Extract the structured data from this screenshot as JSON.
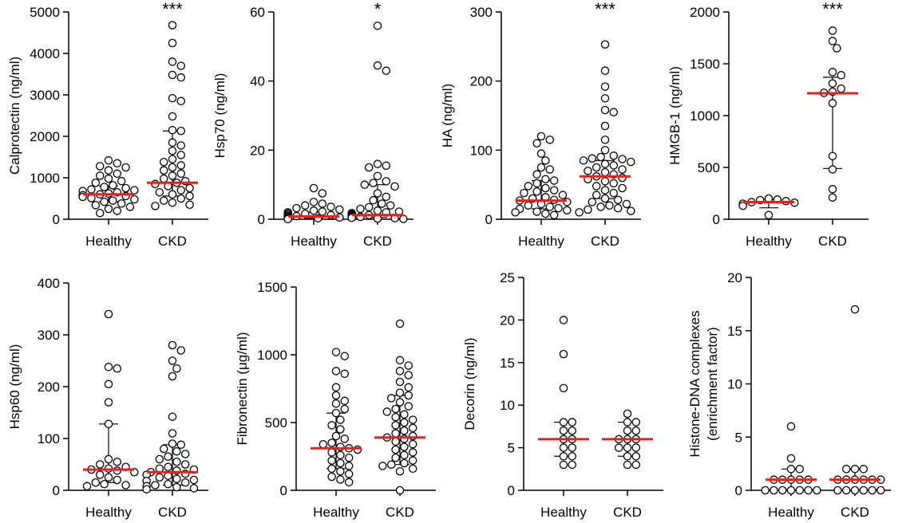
{
  "colors": {
    "median": "#e8201c",
    "dot_stroke": "#000000",
    "dot_fill": "#ffffff",
    "axis": "#000000"
  },
  "chart_data": [
    {
      "type": "scatter",
      "id": "calprotectin",
      "ylabel": "Calprotectin (ng/ml)",
      "categories": [
        "Healthy",
        "CKD"
      ],
      "ylim": [
        0,
        5000
      ],
      "yticks": [
        "0",
        "1000",
        "2000",
        "3000",
        "4000",
        "5000"
      ],
      "significance": "***",
      "series": [
        {
          "name": "Healthy",
          "median": 600,
          "iqr": [
            420,
            800
          ],
          "values": [
            1420,
            1350,
            1280,
            1250,
            1180,
            1100,
            1050,
            980,
            920,
            880,
            820,
            780,
            750,
            720,
            700,
            680,
            650,
            620,
            600,
            580,
            560,
            540,
            510,
            480,
            450,
            420,
            380,
            340,
            300,
            250,
            200,
            150
          ]
        },
        {
          "name": "CKD",
          "median": 880,
          "iqr": [
            560,
            2130
          ],
          "values": [
            4680,
            4250,
            3800,
            3700,
            3480,
            3420,
            2920,
            2850,
            2480,
            2150,
            2130,
            1850,
            1780,
            1650,
            1550,
            1450,
            1380,
            1300,
            1250,
            1180,
            1100,
            1050,
            980,
            920,
            880,
            850,
            800,
            750,
            700,
            650,
            600,
            560,
            500,
            450,
            400,
            350,
            320
          ]
        }
      ]
    },
    {
      "type": "scatter",
      "id": "hsp70",
      "ylabel": "Hsp70 (ng/ml)",
      "categories": [
        "Healthy",
        "CKD"
      ],
      "ylim": [
        0,
        60
      ],
      "yticks": [
        "0",
        "20",
        "40",
        "60"
      ],
      "significance": "*",
      "series": [
        {
          "name": "Healthy",
          "median": 0.8,
          "iqr": [
            0.3,
            2.0
          ],
          "values": [
            9.0,
            7.5,
            5.0,
            4.5,
            4.0,
            3.6,
            3.2,
            2.8,
            2.5,
            2.2,
            2.0,
            1.8,
            1.6,
            1.4,
            1.2,
            1.0,
            0.9,
            0.8,
            0.7,
            0.6,
            0.5,
            0.4,
            0.3,
            0.3,
            0.2,
            0.2,
            0.1,
            0.1,
            0.1,
            0.05
          ]
        },
        {
          "name": "CKD",
          "median": 1.2,
          "iqr": [
            0.5,
            10.0
          ],
          "values": [
            56.0,
            44.5,
            43.0,
            16.0,
            15.5,
            15.0,
            12.5,
            11.0,
            10.5,
            10.0,
            9.5,
            7.5,
            6.5,
            5.5,
            4.5,
            4.0,
            3.5,
            3.0,
            2.5,
            2.2,
            2.0,
            1.8,
            1.5,
            1.3,
            1.2,
            1.1,
            1.0,
            0.9,
            0.8,
            0.7,
            0.6,
            0.5,
            0.4,
            0.3,
            0.2,
            0.1
          ]
        }
      ]
    },
    {
      "type": "scatter",
      "id": "ha",
      "ylabel": "HA (ng/ml)",
      "categories": [
        "Healthy",
        "CKD"
      ],
      "ylim": [
        0,
        300
      ],
      "yticks": [
        "0",
        "100",
        "200",
        "300"
      ],
      "significance": "***",
      "series": [
        {
          "name": "Healthy",
          "median": 27,
          "iqr": [
            15,
            56
          ],
          "values": [
            120,
            115,
            110,
            95,
            85,
            75,
            72,
            65,
            58,
            56,
            52,
            48,
            45,
            42,
            40,
            38,
            35,
            32,
            30,
            28,
            27,
            25,
            22,
            20,
            18,
            16,
            15,
            13,
            11,
            10,
            8,
            6
          ]
        },
        {
          "name": "CKD",
          "median": 62,
          "iqr": [
            30,
            85
          ],
          "values": [
            253,
            215,
            192,
            175,
            158,
            155,
            135,
            115,
            100,
            92,
            90,
            88,
            87,
            85,
            83,
            80,
            78,
            75,
            72,
            70,
            68,
            65,
            62,
            60,
            58,
            55,
            52,
            48,
            45,
            42,
            38,
            35,
            30,
            28,
            25,
            22,
            20,
            18,
            16,
            14,
            12,
            10
          ]
        }
      ]
    },
    {
      "type": "scatter",
      "id": "hmgb1",
      "ylabel": "HMGB-1 (ng/ml)",
      "categories": [
        "Healthy",
        "CKD"
      ],
      "ylim": [
        0,
        2000
      ],
      "yticks": [
        "0",
        "500",
        "1000",
        "1500",
        "2000"
      ],
      "significance": "***",
      "series": [
        {
          "name": "Healthy",
          "median": 165,
          "iqr": [
            110,
            190
          ],
          "values": [
            200,
            190,
            185,
            175,
            165,
            160,
            150,
            130,
            40
          ]
        },
        {
          "name": "CKD",
          "median": 1215,
          "iqr": [
            490,
            1370
          ],
          "values": [
            1820,
            1720,
            1650,
            1420,
            1390,
            1310,
            1260,
            1230,
            1220,
            1120,
            610,
            480,
            290,
            210
          ]
        }
      ]
    },
    {
      "type": "scatter",
      "id": "hsp60",
      "ylabel": "Hsp60 (ng/ml)",
      "categories": [
        "Healthy",
        "CKD"
      ],
      "ylim": [
        0,
        400
      ],
      "yticks": [
        "0",
        "100",
        "200",
        "300",
        "400"
      ],
      "significance": "",
      "series": [
        {
          "name": "Healthy",
          "median": 40,
          "iqr": [
            15,
            128
          ],
          "values": [
            340,
            238,
            235,
            205,
            170,
            128,
            60,
            55,
            50,
            45,
            42,
            40,
            38,
            35,
            30,
            25,
            20,
            15,
            12,
            10,
            8
          ]
        },
        {
          "name": "CKD",
          "median": 35,
          "iqr": [
            10,
            88
          ],
          "values": [
            280,
            270,
            250,
            235,
            220,
            142,
            110,
            90,
            88,
            80,
            75,
            70,
            65,
            60,
            55,
            50,
            45,
            42,
            40,
            38,
            35,
            32,
            30,
            28,
            25,
            22,
            20,
            18,
            15,
            12,
            10,
            8,
            6,
            4,
            2
          ]
        }
      ]
    },
    {
      "type": "scatter",
      "id": "fibronectin",
      "ylabel": "Fibronectin (μg/ml)",
      "categories": [
        "Healthy",
        "CKD"
      ],
      "ylim": [
        0,
        1500
      ],
      "yticks": [
        "0",
        "500",
        "1000",
        "1500"
      ],
      "significance": "",
      "series": [
        {
          "name": "Healthy",
          "median": 310,
          "iqr": [
            160,
            570
          ],
          "values": [
            1020,
            990,
            880,
            860,
            760,
            700,
            660,
            640,
            600,
            570,
            520,
            480,
            450,
            400,
            380,
            350,
            340,
            320,
            310,
            300,
            280,
            260,
            240,
            220,
            200,
            180,
            160,
            140,
            120,
            100,
            80,
            60
          ]
        },
        {
          "name": "CKD",
          "median": 390,
          "iqr": [
            190,
            700
          ],
          "values": [
            1230,
            960,
            920,
            880,
            850,
            800,
            760,
            720,
            700,
            680,
            650,
            620,
            600,
            580,
            560,
            540,
            520,
            500,
            480,
            460,
            440,
            420,
            400,
            390,
            380,
            360,
            340,
            320,
            300,
            280,
            260,
            240,
            220,
            200,
            190,
            180,
            160,
            140,
            0
          ]
        }
      ]
    },
    {
      "type": "scatter",
      "id": "decorin",
      "ylabel": "Decorin (ng/ml)",
      "categories": [
        "Healthy",
        "CKD"
      ],
      "ylim": [
        0,
        25
      ],
      "yticks": [
        "0",
        "5",
        "10",
        "15",
        "20",
        "25"
      ],
      "significance": "",
      "series": [
        {
          "name": "Healthy",
          "median": 6,
          "iqr": [
            4,
            8
          ],
          "values": [
            20,
            16,
            12,
            8,
            8,
            7,
            7,
            6,
            6,
            5,
            5,
            4,
            4,
            3,
            3
          ]
        },
        {
          "name": "CKD",
          "median": 6,
          "iqr": [
            4,
            8
          ],
          "values": [
            9,
            8,
            8,
            7,
            7,
            6,
            6,
            6,
            5,
            5,
            5,
            4,
            4,
            3,
            3
          ]
        }
      ]
    },
    {
      "type": "scatter",
      "id": "histone-dna",
      "ylabel": "Histone-DNA complexes\n(enrichment factor)",
      "categories": [
        "Healthy",
        "CKD"
      ],
      "ylim": [
        0,
        20
      ],
      "yticks": [
        "0",
        "5",
        "10",
        "15",
        "20"
      ],
      "significance": "",
      "series": [
        {
          "name": "Healthy",
          "median": 1,
          "iqr": [
            0,
            2
          ],
          "values": [
            6,
            3,
            2,
            2,
            1,
            1,
            1,
            1,
            1,
            0,
            0,
            0,
            0,
            0,
            0,
            0
          ]
        },
        {
          "name": "CKD",
          "median": 1,
          "iqr": [
            1,
            2
          ],
          "values": [
            17,
            2,
            2,
            2,
            1,
            1,
            1,
            1,
            1,
            1,
            0,
            0,
            0,
            0,
            0,
            0
          ]
        }
      ]
    }
  ]
}
